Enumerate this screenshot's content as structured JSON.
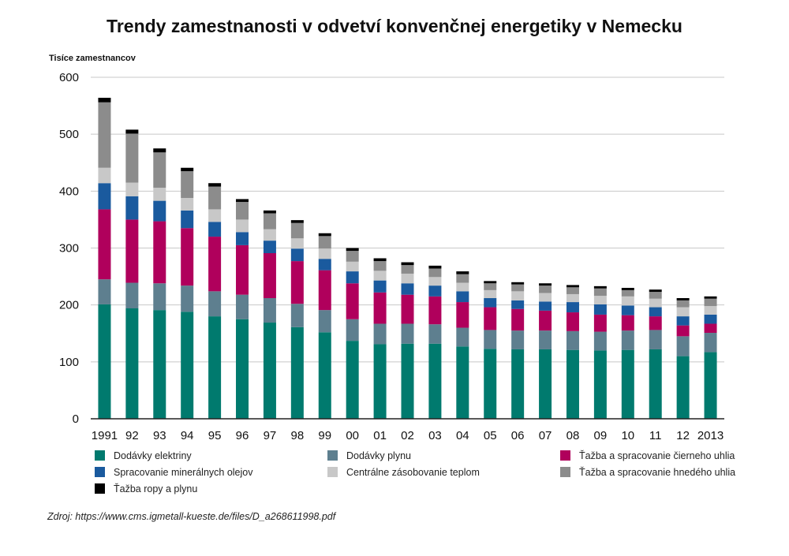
{
  "chart_data": {
    "type": "bar",
    "stacked": true,
    "title": "Trendy zamestnanosti v odvetví konvenčnej energetiky v Nemecku",
    "ylabel": "Tisíce zamestnancov",
    "xlabel": "",
    "ylim": [
      0,
      600
    ],
    "yticks": [
      0,
      100,
      200,
      300,
      400,
      500,
      600
    ],
    "grid": true,
    "categories": [
      "1991",
      "92",
      "93",
      "94",
      "95",
      "96",
      "97",
      "98",
      "99",
      "00",
      "01",
      "02",
      "03",
      "04",
      "05",
      "06",
      "07",
      "08",
      "09",
      "10",
      "11",
      "12",
      "2013"
    ],
    "series": [
      {
        "name": "Dodávky elektriny",
        "color": "#007a6e",
        "values": [
          201,
          194,
          191,
          188,
          180,
          175,
          169,
          161,
          152,
          137,
          131,
          132,
          132,
          127,
          123,
          122,
          122,
          121,
          120,
          121,
          122,
          110,
          117
        ]
      },
      {
        "name": "Dodávky plynu",
        "color": "#5e7f8f",
        "values": [
          44,
          45,
          47,
          46,
          44,
          43,
          43,
          41,
          39,
          38,
          36,
          35,
          34,
          33,
          33,
          33,
          33,
          33,
          33,
          34,
          34,
          35,
          34
        ]
      },
      {
        "name": "Ťažba a spracovanie čierneho uhlia",
        "color": "#b0005c",
        "values": [
          123,
          111,
          109,
          101,
          96,
          87,
          79,
          75,
          70,
          63,
          55,
          51,
          49,
          45,
          40,
          38,
          35,
          33,
          30,
          27,
          24,
          19,
          16
        ]
      },
      {
        "name": "Spracovanie minerálnych olejov",
        "color": "#1a5a9e",
        "values": [
          46,
          41,
          36,
          31,
          26,
          23,
          22,
          22,
          20,
          21,
          21,
          20,
          19,
          19,
          16,
          15,
          16,
          18,
          18,
          17,
          16,
          16,
          16
        ]
      },
      {
        "name": "Centrálne zásobovanie teplom",
        "color": "#c8c8c8",
        "values": [
          27,
          24,
          23,
          22,
          22,
          22,
          20,
          18,
          18,
          17,
          17,
          17,
          15,
          15,
          14,
          16,
          15,
          14,
          15,
          16,
          15,
          16,
          15
        ]
      },
      {
        "name": "Ťažba a spracovanie hnedého uhlia",
        "color": "#8c8c8c",
        "values": [
          115,
          86,
          62,
          47,
          40,
          31,
          28,
          27,
          22,
          19,
          17,
          15,
          15,
          15,
          12,
          12,
          13,
          12,
          13,
          11,
          12,
          12,
          13
        ]
      },
      {
        "name": "Ťažba ropy a plynu",
        "color": "#000000",
        "values": [
          8,
          7,
          7,
          6,
          6,
          5,
          5,
          5,
          5,
          5,
          5,
          5,
          5,
          5,
          4,
          4,
          4,
          4,
          4,
          4,
          4,
          4,
          4
        ]
      }
    ],
    "legend_position": "bottom"
  },
  "source_text": "Zdroj: https://www.cms.igmetall-kueste.de/files/D_a268611998.pdf"
}
